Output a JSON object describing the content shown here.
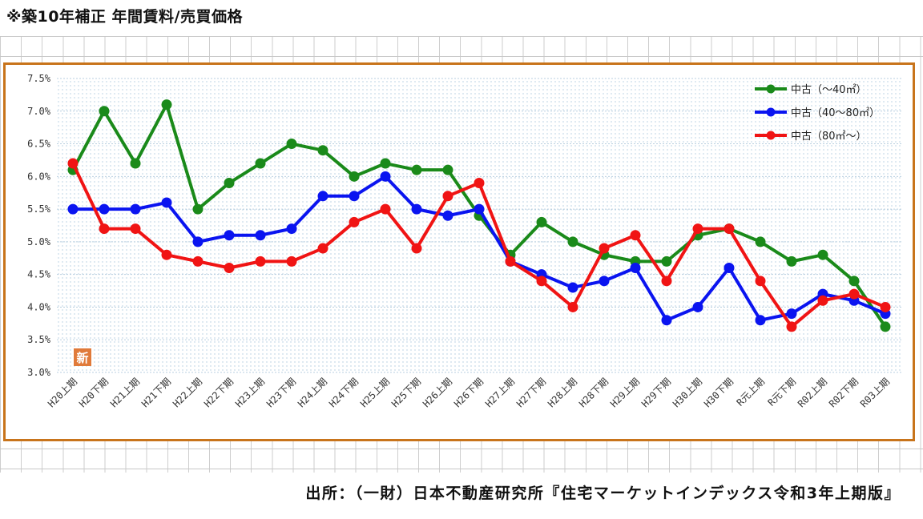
{
  "page": {
    "title": "※築10年補正 年間賃料/売買価格",
    "source": "出所：（一財）日本不動産研究所『住宅マーケットインデックス令和3年上期版』",
    "badge_text": "新"
  },
  "chart_data": {
    "type": "line",
    "categories": [
      "H20上期",
      "H20下期",
      "H21上期",
      "H21下期",
      "H22上期",
      "H22下期",
      "H23上期",
      "H23下期",
      "H24上期",
      "H24下期",
      "H25上期",
      "H25下期",
      "H26上期",
      "H26下期",
      "H27上期",
      "H27下期",
      "H28上期",
      "H28下期",
      "H29上期",
      "H29下期",
      "H30上期",
      "H30下期",
      "R元上期",
      "R元下期",
      "R02上期",
      "R02下期",
      "R03上期"
    ],
    "ylim": [
      3.0,
      7.5
    ],
    "yticks": [
      "3.0%",
      "3.5%",
      "4.0%",
      "4.5%",
      "5.0%",
      "5.5%",
      "6.0%",
      "6.5%",
      "7.0%",
      "7.5%"
    ],
    "grid": "dotted",
    "legend_position": "top-right",
    "series": [
      {
        "name": "中古（～40㎡）",
        "color": "#1a8a1a",
        "values": [
          6.1,
          7.0,
          6.2,
          7.1,
          5.5,
          5.9,
          6.2,
          6.5,
          6.4,
          6.0,
          6.2,
          6.1,
          6.1,
          5.4,
          4.8,
          5.3,
          5.0,
          4.8,
          4.7,
          4.7,
          5.1,
          5.2,
          5.0,
          4.7,
          4.8,
          4.4,
          3.7
        ]
      },
      {
        "name": "中古（40～80㎡）",
        "color": "#0a14f0",
        "values": [
          5.5,
          5.5,
          5.5,
          5.6,
          5.0,
          5.1,
          5.1,
          5.2,
          5.7,
          5.7,
          6.0,
          5.5,
          5.4,
          5.5,
          4.7,
          4.5,
          4.3,
          4.4,
          4.6,
          3.8,
          4.0,
          4.6,
          3.8,
          3.9,
          4.2,
          4.1,
          3.9
        ]
      },
      {
        "name": "中古（80㎡～）",
        "color": "#f01414",
        "values": [
          6.2,
          5.2,
          5.2,
          4.8,
          4.7,
          4.6,
          4.7,
          4.7,
          4.9,
          5.3,
          5.5,
          4.9,
          5.7,
          5.9,
          4.7,
          4.4,
          4.0,
          4.9,
          5.1,
          4.4,
          5.2,
          5.2,
          4.4,
          3.7,
          4.1,
          4.2,
          4.0
        ]
      }
    ]
  }
}
